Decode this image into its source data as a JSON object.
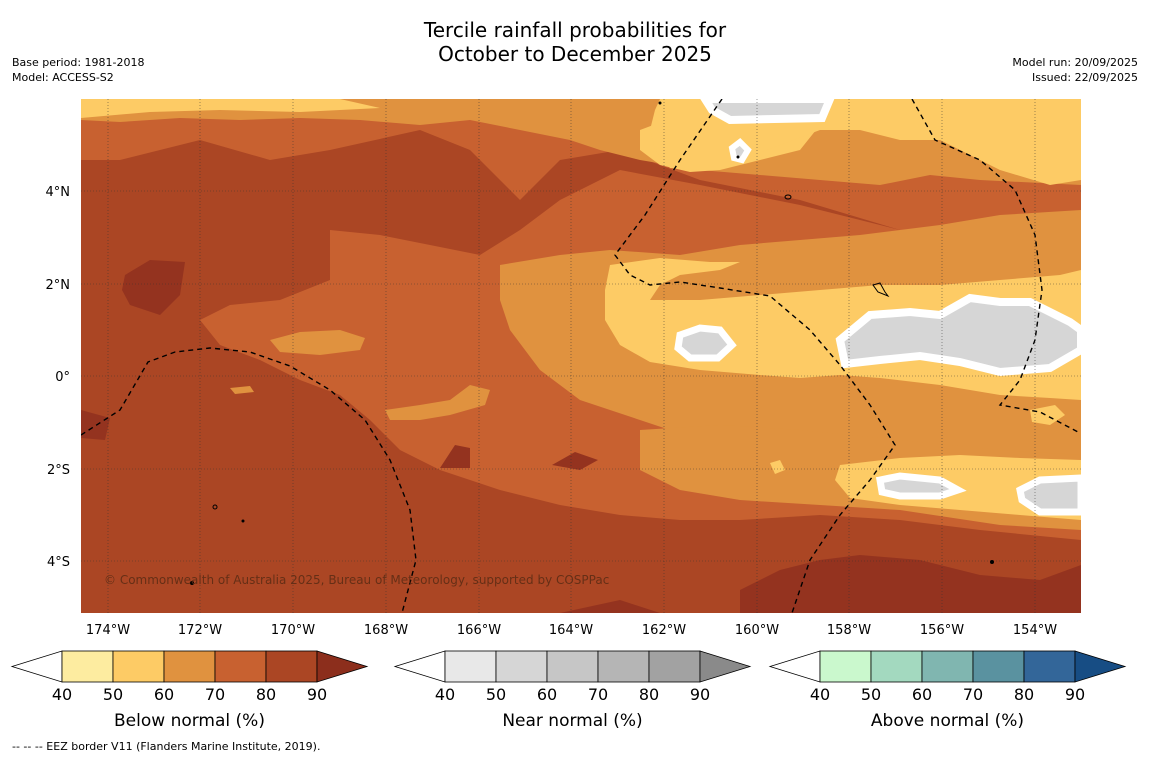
{
  "title_line1": "Tercile rainfall probabilities for",
  "title_line2": "October to December 2025",
  "meta_left": {
    "base_period": "Base period: 1981-2018",
    "model": "Model: ACCESS-S2"
  },
  "meta_right": {
    "model_run": "Model run: 20/09/2025",
    "issued": "Issued: 22/09/2025"
  },
  "copyright": "© Commonwealth of Australia 2025, Bureau of Meteorology, supported by COSPPac",
  "footnote": "--  --  -- EEZ border V11 (Flanders Marine Institute, 2019).",
  "lat_labels": [
    "4°N",
    "2°N",
    "0°",
    "2°S",
    "4°S"
  ],
  "lon_labels": [
    "174°W",
    "172°W",
    "170°W",
    "168°W",
    "166°W",
    "164°W",
    "162°W",
    "160°W",
    "158°W",
    "156°W",
    "154°W"
  ],
  "colorbars": [
    {
      "title": "Below normal (%)",
      "ticks": [
        "40",
        "50",
        "60",
        "70",
        "80",
        "90"
      ],
      "colors": [
        "#ffffff",
        "#fdeca0",
        "#fdcb65",
        "#e0923f",
        "#c86130",
        "#ab4624",
        "#8c2e1c"
      ]
    },
    {
      "title": "Near normal (%)",
      "ticks": [
        "40",
        "50",
        "60",
        "70",
        "80",
        "90"
      ],
      "colors": [
        "#ffffff",
        "#e8e8e8",
        "#d6d6d6",
        "#c6c6c6",
        "#b5b5b5",
        "#a2a2a2",
        "#8a8a8a"
      ]
    },
    {
      "title": "Above normal (%)",
      "ticks": [
        "40",
        "50",
        "60",
        "70",
        "80",
        "90"
      ],
      "colors": [
        "#ffffff",
        "#caf8cd",
        "#a3d9bf",
        "#80b6b0",
        "#5a92a0",
        "#336699",
        "#174d84"
      ]
    }
  ],
  "palette": {
    "bn50": "#fdcb65",
    "bn60": "#e0923f",
    "bn70": "#c86130",
    "bn80": "#ab4624",
    "bn90": "#94331f",
    "nn50": "#d6d6d6",
    "white": "#ffffff"
  }
}
